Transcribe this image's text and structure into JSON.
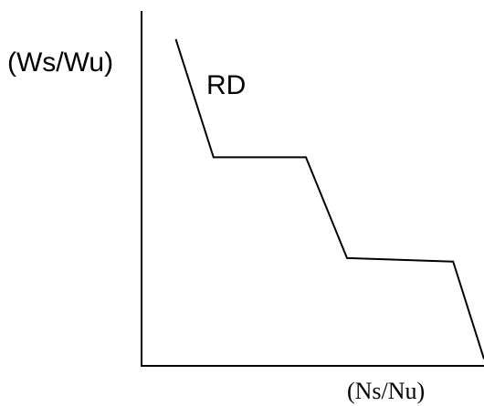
{
  "chart_data": {
    "type": "line",
    "title": "",
    "xlabel": "(Ns/Nu)",
    "ylabel": "(Ws/Wu)",
    "xlim": [
      0,
      10
    ],
    "ylim": [
      0,
      10
    ],
    "grid": false,
    "legend": "none",
    "series": [
      {
        "name": "RD",
        "x": [
          1.0,
          2.1,
          4.8,
          6.0,
          9.1,
          10.0
        ],
        "y": [
          9.4,
          6.0,
          6.0,
          3.1,
          3.0,
          0.2
        ]
      }
    ]
  }
}
